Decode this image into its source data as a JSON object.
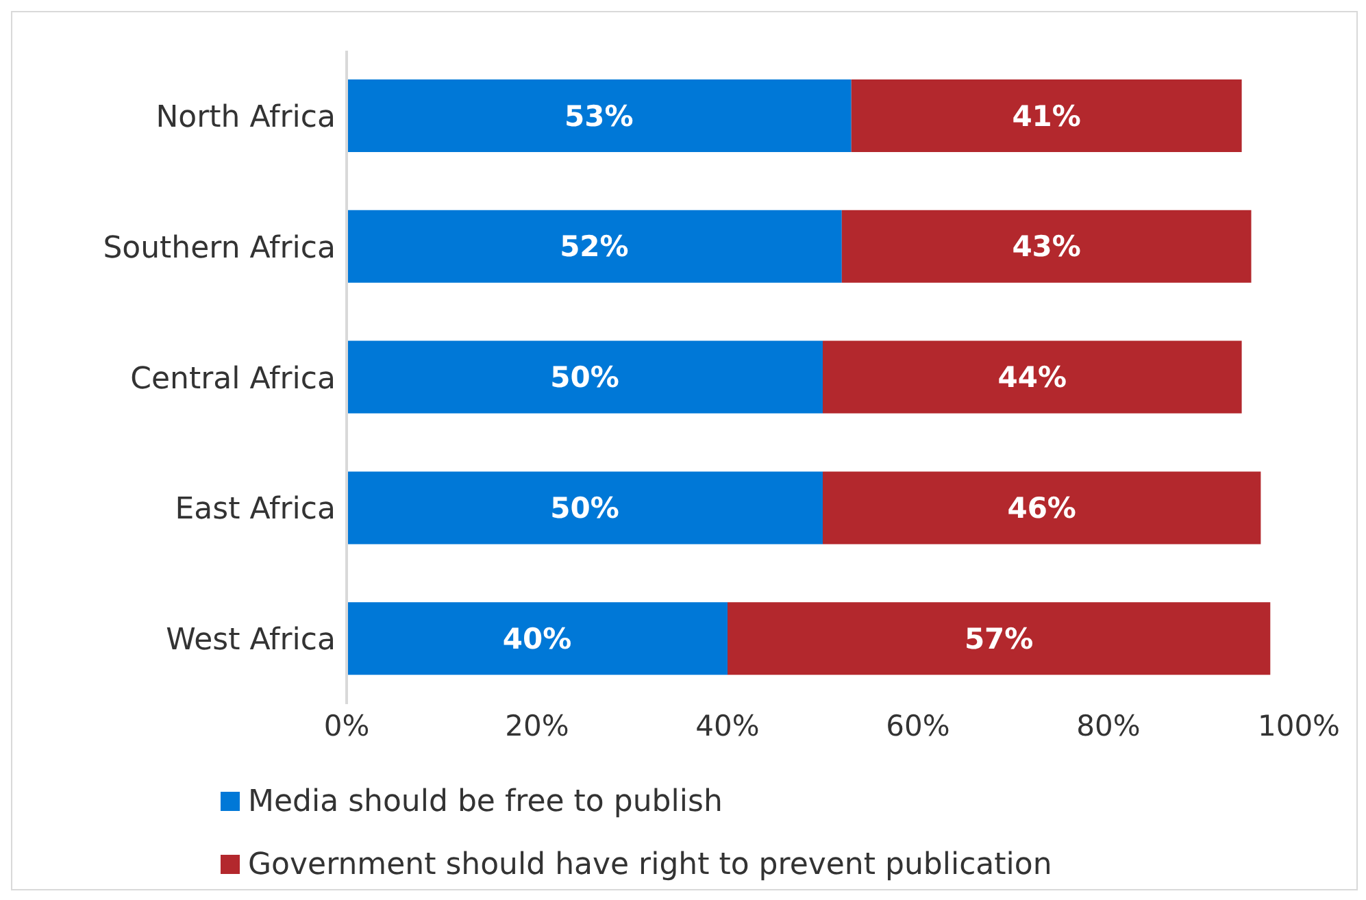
{
  "chart_data": {
    "type": "bar",
    "orientation": "horizontal",
    "stacked": true,
    "categories": [
      "North Africa",
      "Southern Africa",
      "Central Africa",
      "East Africa",
      "West Africa"
    ],
    "series": [
      {
        "name": "Media should be free to publish",
        "color": "#0078d7",
        "values": [
          53,
          52,
          50,
          50,
          40
        ],
        "value_labels": [
          "53%",
          "52%",
          "50%",
          "50%",
          "40%"
        ]
      },
      {
        "name": "Government should have right to prevent publication",
        "color": "#b3282d",
        "values": [
          41,
          43,
          44,
          46,
          57
        ],
        "value_labels": [
          "41%",
          "43%",
          "44%",
          "46%",
          "57%"
        ]
      }
    ],
    "xlim": [
      0,
      100
    ],
    "xticks": [
      {
        "value": 0,
        "label": "0%"
      },
      {
        "value": 20,
        "label": "20%"
      },
      {
        "value": 40,
        "label": "40%"
      },
      {
        "value": 60,
        "label": "60%"
      },
      {
        "value": 80,
        "label": "80%"
      },
      {
        "value": 100,
        "label": "100%"
      }
    ],
    "grid": false,
    "legend": "bottom"
  }
}
